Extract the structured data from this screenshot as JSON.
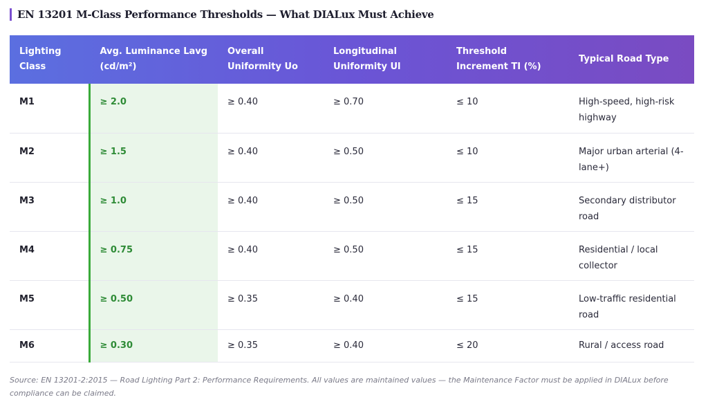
{
  "title": "EN 13201 M-Class Performance Thresholds — What DIALux Must Achieve",
  "table": {
    "headers": {
      "h0": "Lighting Class",
      "h1": "Avg. Luminance Lavg (cd/m²)",
      "h2": "Overall Uniformity Uo",
      "h3": "Longitudinal Uniformity Ul",
      "h4": "Threshold Increment TI (%)",
      "h5": "Typical Road Type"
    },
    "rows": [
      {
        "cls": "M1",
        "lum": "≥ 2.0",
        "uo": "≥ 0.40",
        "ul": "≥ 0.70",
        "ti": "≤ 10",
        "road": "High-speed, high-risk highway"
      },
      {
        "cls": "M2",
        "lum": "≥ 1.5",
        "uo": "≥ 0.40",
        "ul": "≥ 0.50",
        "ti": "≤ 10",
        "road": "Major urban arterial (4-lane+)"
      },
      {
        "cls": "M3",
        "lum": "≥ 1.0",
        "uo": "≥ 0.40",
        "ul": "≥ 0.50",
        "ti": "≤ 15",
        "road": "Secondary distributor road"
      },
      {
        "cls": "M4",
        "lum": "≥ 0.75",
        "uo": "≥ 0.40",
        "ul": "≥ 0.50",
        "ti": "≤ 15",
        "road": "Residential / local collector"
      },
      {
        "cls": "M5",
        "lum": "≥ 0.50",
        "uo": "≥ 0.35",
        "ul": "≥ 0.40",
        "ti": "≤ 15",
        "road": "Low-traffic residential road"
      },
      {
        "cls": "M6",
        "lum": "≥ 0.30",
        "uo": "≥ 0.35",
        "ul": "≥ 0.40",
        "ti": "≤ 20",
        "road": "Rural / access road"
      }
    ]
  },
  "source": "Source: EN 13201-2:2015 — Road Lighting Part 2: Performance Requirements. All values are maintained values — the Maintenance Factor must be applied in DIALux before compliance can be claimed.",
  "colors": {
    "header_gradient_start": "#5b6fe0",
    "header_gradient_end": "#7a4bc2",
    "luminance_highlight": "#eaf6ea",
    "luminance_text": "#2e8b36",
    "accent_bar": "#7a4fd0"
  }
}
